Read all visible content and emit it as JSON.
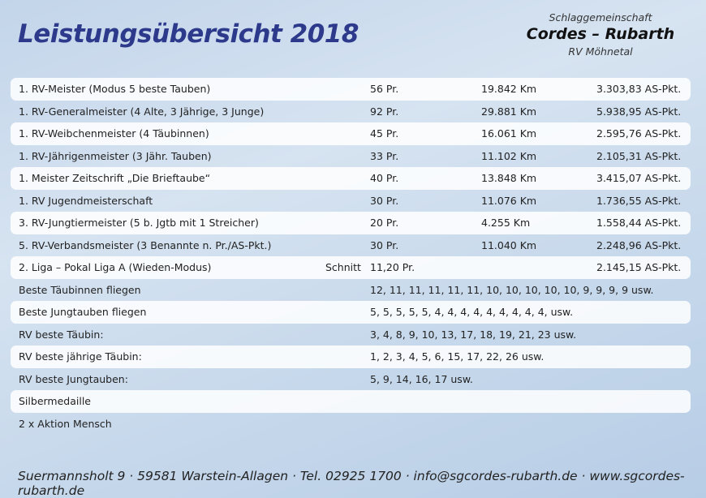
{
  "header": {
    "title": "Leistungsübersicht 2018",
    "club_prefix": "Schlaggemeinschaft",
    "club_name": "Cordes – Rubarth",
    "club_rv": "RV Möhnetal"
  },
  "results": [
    {
      "label": "1. RV-Meister  (Modus 5 beste Tauben)",
      "prizes": "56 Pr.",
      "km": "19.842 Km",
      "points": "3.303,83 AS-Pkt."
    },
    {
      "label": "1. RV-Generalmeister (4 Alte, 3 Jährige, 3 Junge)",
      "prizes": "92 Pr.",
      "km": "29.881 Km",
      "points": "5.938,95 AS-Pkt."
    },
    {
      "label": "1. RV-Weibchenmeister (4 Täubinnen)",
      "prizes": "45 Pr.",
      "km": "16.061 Km",
      "points": "2.595,76 AS-Pkt."
    },
    {
      "label": "1. RV-Jährigenmeister (3 Jähr. Tauben)",
      "prizes": "33 Pr.",
      "km": "11.102 Km",
      "points": "2.105,31 AS-Pkt."
    },
    {
      "label": "1. Meister Zeitschrift „Die Brieftaube“",
      "prizes": "40 Pr.",
      "km": "13.848 Km",
      "points": "3.415,07 AS-Pkt."
    },
    {
      "label": "1. RV Jugendmeisterschaft",
      "prizes": "30 Pr.",
      "km": "11.076 Km",
      "points": "1.736,55 AS-Pkt."
    },
    {
      "label": "3. RV-Jungtiermeister (5 b. Jgtb mit 1 Streicher)",
      "prizes": "20 Pr.",
      "km": "4.255 Km",
      "points": "1.558,44 AS-Pkt."
    },
    {
      "label": "5. RV-Verbandsmeister (3 Benannte n. Pr./AS-Pkt.)",
      "prizes": "30 Pr.",
      "km": "11.040 Km",
      "points": "2.248,96 AS-Pkt."
    },
    {
      "label": "2. Liga – Pokal Liga A (Wieden-Modus)",
      "schnitt": "Schnitt",
      "prizes": "11,20 Pr.",
      "points": "2.145,15 AS-Pkt."
    }
  ],
  "extras": [
    {
      "label": "Beste Täubinnen fliegen",
      "value": "12,  11, 11, 11, 11, 11,  10, 10, 10, 10, 10, 9, 9, 9, 9 usw."
    },
    {
      "label": "Beste Jungtauben fliegen",
      "value": "5, 5, 5, 5, 5, 4, 4, 4, 4, 4, 4, 4, 4, 4, usw."
    },
    {
      "label": "RV beste Täubin:",
      "value": "3, 4, 8, 9, 10, 13, 17, 18, 19, 21, 23 usw."
    },
    {
      "label": "RV beste jährige Täubin:",
      "value": "1, 2, 3, 4, 5, 6, 15, 17, 22, 26 usw."
    },
    {
      "label": "RV beste Jungtauben:",
      "value": "5, 9, 14, 16, 17 usw."
    },
    {
      "label": "Silbermedaille"
    },
    {
      "label": "2 x Aktion Mensch"
    }
  ],
  "footer": "Suermannsholt 9 · 59581 Warstein-Allagen · Tel. 02925 1700 · info@sgcordes-rubarth.de · www.sgcordes-rubarth.de"
}
